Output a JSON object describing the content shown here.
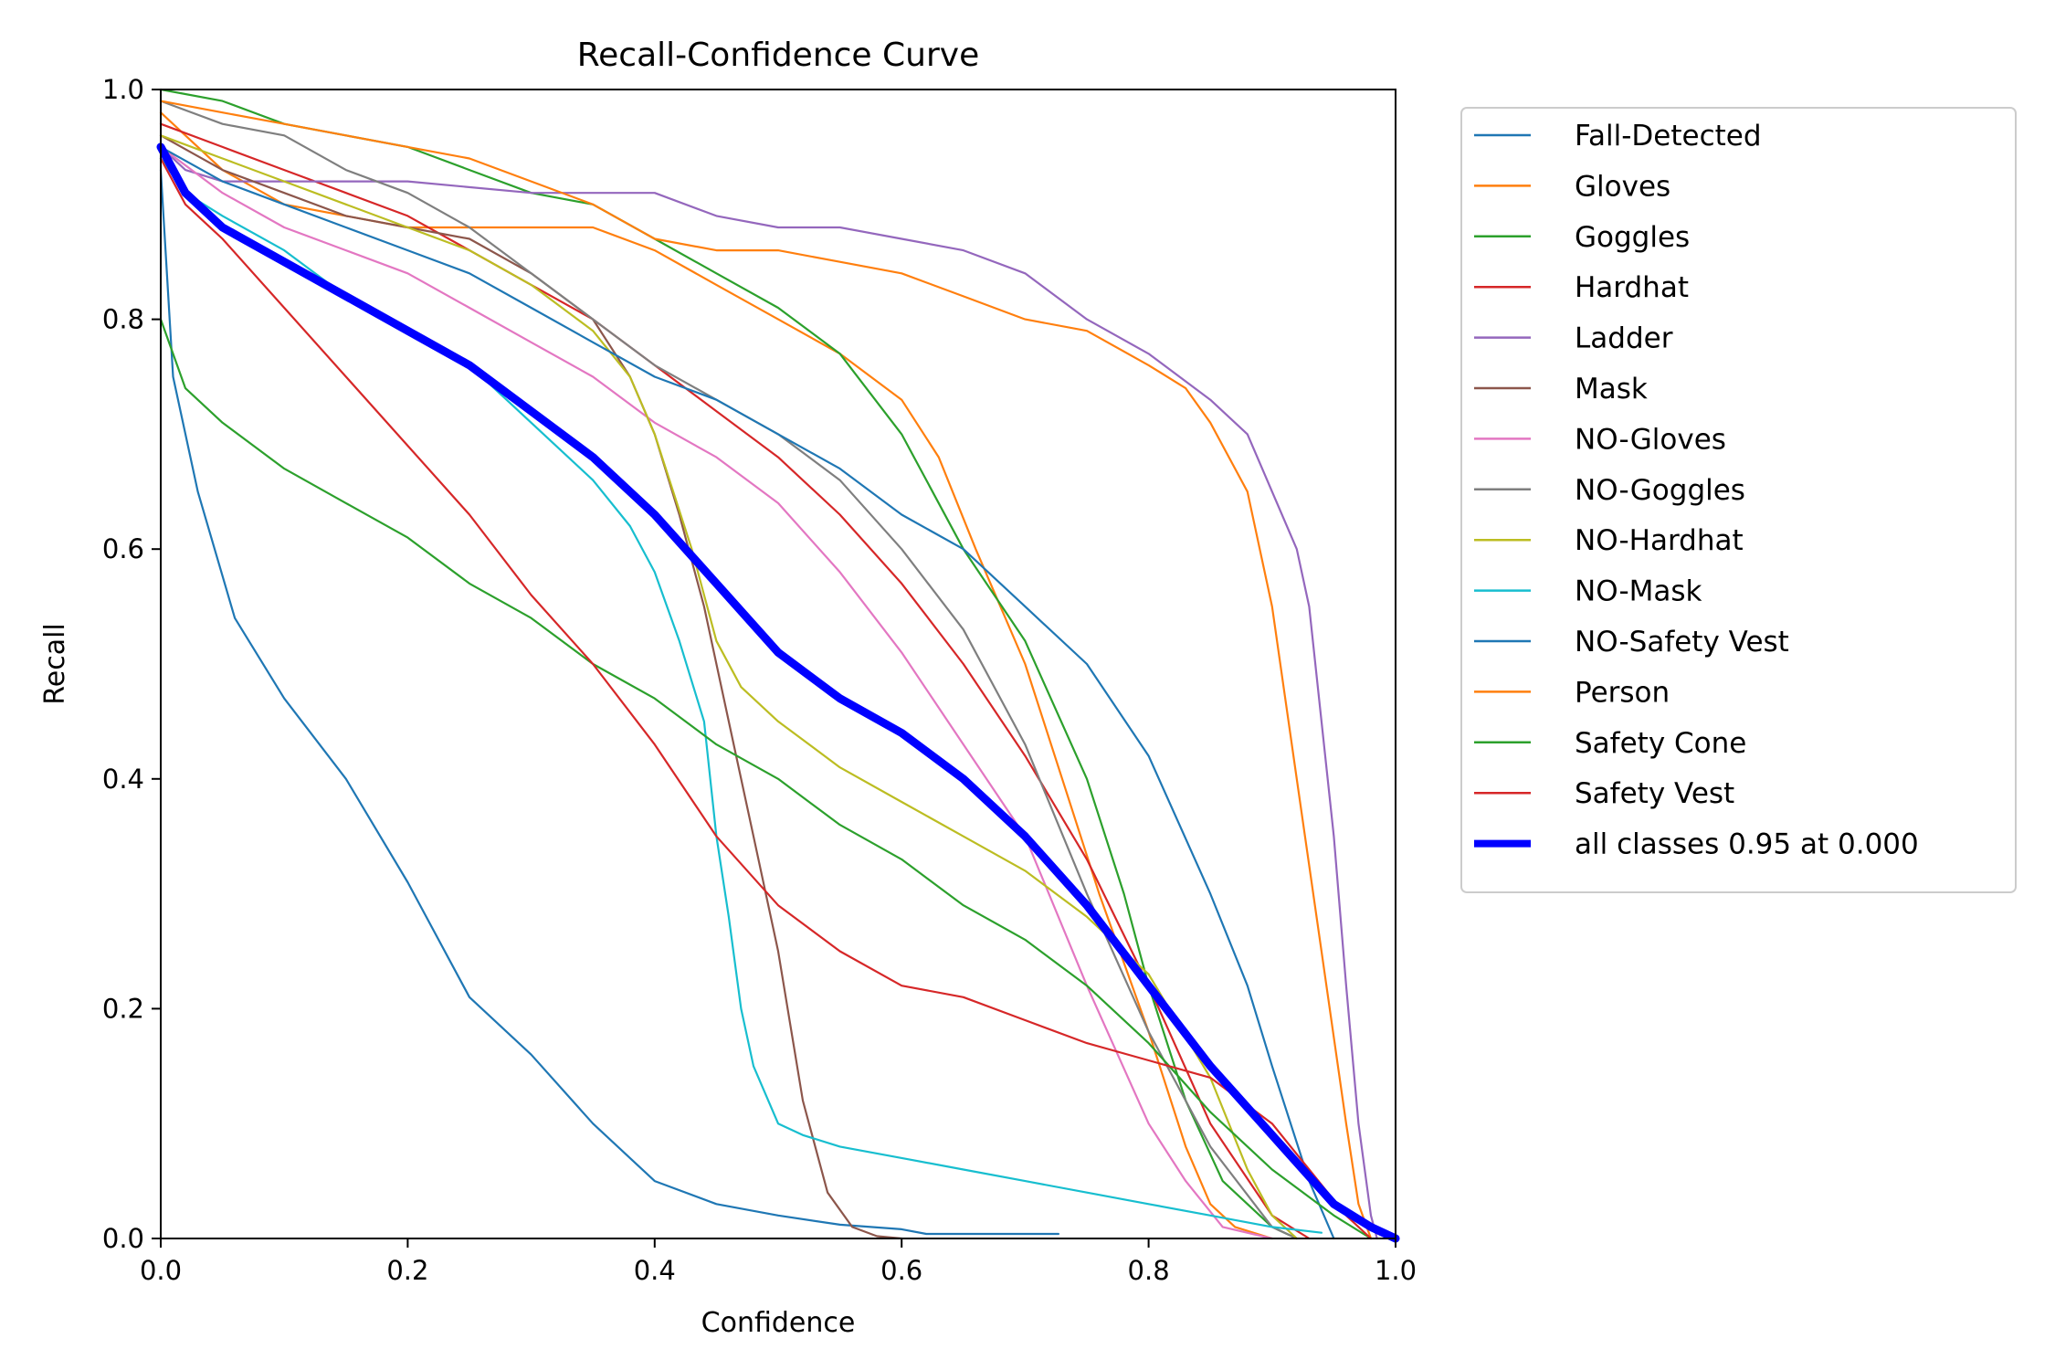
{
  "chart_data": {
    "type": "line",
    "title": "Recall-Confidence Curve",
    "xlabel": "Confidence",
    "ylabel": "Recall",
    "xlim": [
      0.0,
      1.0
    ],
    "ylim": [
      0.0,
      1.0
    ],
    "xticks": [
      "0.0",
      "0.2",
      "0.4",
      "0.6",
      "0.8",
      "1.0"
    ],
    "yticks": [
      "0.0",
      "0.2",
      "0.4",
      "0.6",
      "0.8",
      "1.0"
    ],
    "grid": false,
    "legend_position": "outside-right",
    "series": [
      {
        "name": "Fall-Detected",
        "color": "#1f77b4",
        "x": [
          0.0,
          0.01,
          0.03,
          0.06,
          0.1,
          0.15,
          0.2,
          0.25,
          0.3,
          0.35,
          0.4,
          0.45,
          0.5,
          0.55,
          0.6,
          0.62,
          0.7,
          0.727
        ],
        "y": [
          0.93,
          0.75,
          0.65,
          0.54,
          0.47,
          0.4,
          0.31,
          0.21,
          0.16,
          0.1,
          0.05,
          0.03,
          0.02,
          0.012,
          0.008,
          0.004,
          0.004,
          0.004
        ]
      },
      {
        "name": "Gloves",
        "color": "#ff7f0e",
        "x": [
          0.0,
          0.02,
          0.05,
          0.1,
          0.2,
          0.3,
          0.35,
          0.4,
          0.45,
          0.5,
          0.55,
          0.6,
          0.63,
          0.66,
          0.7,
          0.73,
          0.76,
          0.8,
          0.83,
          0.85,
          0.87,
          0.9
        ],
        "y": [
          0.98,
          0.96,
          0.93,
          0.9,
          0.88,
          0.88,
          0.88,
          0.86,
          0.83,
          0.8,
          0.77,
          0.73,
          0.68,
          0.6,
          0.5,
          0.4,
          0.3,
          0.18,
          0.08,
          0.03,
          0.01,
          0.0
        ]
      },
      {
        "name": "Goggles",
        "color": "#2ca02c",
        "x": [
          0.0,
          0.05,
          0.1,
          0.15,
          0.2,
          0.25,
          0.3,
          0.35,
          0.4,
          0.45,
          0.5,
          0.55,
          0.6,
          0.65,
          0.7,
          0.75,
          0.78,
          0.8,
          0.83,
          0.86,
          0.9,
          0.92
        ],
        "y": [
          1.0,
          0.99,
          0.97,
          0.96,
          0.95,
          0.93,
          0.91,
          0.9,
          0.87,
          0.84,
          0.81,
          0.77,
          0.7,
          0.6,
          0.52,
          0.4,
          0.3,
          0.22,
          0.12,
          0.05,
          0.01,
          0.0
        ]
      },
      {
        "name": "Hardhat",
        "color": "#d62728",
        "x": [
          0.0,
          0.05,
          0.1,
          0.15,
          0.2,
          0.25,
          0.3,
          0.35,
          0.4,
          0.45,
          0.5,
          0.55,
          0.6,
          0.65,
          0.7,
          0.75,
          0.8,
          0.85,
          0.9,
          0.93
        ],
        "y": [
          0.97,
          0.95,
          0.93,
          0.91,
          0.89,
          0.86,
          0.83,
          0.8,
          0.76,
          0.72,
          0.68,
          0.63,
          0.57,
          0.5,
          0.42,
          0.33,
          0.22,
          0.1,
          0.02,
          0.0
        ]
      },
      {
        "name": "Ladder",
        "color": "#9467bd",
        "x": [
          0.0,
          0.02,
          0.05,
          0.1,
          0.2,
          0.3,
          0.35,
          0.4,
          0.45,
          0.5,
          0.55,
          0.6,
          0.65,
          0.7,
          0.75,
          0.8,
          0.85,
          0.88,
          0.9,
          0.92,
          0.93,
          0.94,
          0.95,
          0.96,
          0.97,
          0.98,
          0.985
        ],
        "y": [
          0.95,
          0.93,
          0.92,
          0.92,
          0.92,
          0.91,
          0.91,
          0.91,
          0.89,
          0.88,
          0.88,
          0.87,
          0.86,
          0.84,
          0.8,
          0.77,
          0.73,
          0.7,
          0.65,
          0.6,
          0.55,
          0.45,
          0.35,
          0.22,
          0.1,
          0.02,
          0.0
        ]
      },
      {
        "name": "Mask",
        "color": "#8c564b",
        "x": [
          0.0,
          0.05,
          0.1,
          0.15,
          0.2,
          0.25,
          0.3,
          0.35,
          0.38,
          0.4,
          0.42,
          0.44,
          0.46,
          0.48,
          0.5,
          0.52,
          0.54,
          0.56,
          0.58,
          0.6
        ],
        "y": [
          0.96,
          0.93,
          0.91,
          0.89,
          0.88,
          0.87,
          0.84,
          0.8,
          0.75,
          0.7,
          0.63,
          0.55,
          0.45,
          0.35,
          0.25,
          0.12,
          0.04,
          0.01,
          0.002,
          0.0
        ]
      },
      {
        "name": "NO-Gloves",
        "color": "#e377c2",
        "x": [
          0.0,
          0.05,
          0.1,
          0.15,
          0.2,
          0.25,
          0.3,
          0.35,
          0.4,
          0.45,
          0.5,
          0.55,
          0.6,
          0.65,
          0.7,
          0.75,
          0.8,
          0.83,
          0.86,
          0.9
        ],
        "y": [
          0.95,
          0.91,
          0.88,
          0.86,
          0.84,
          0.81,
          0.78,
          0.75,
          0.71,
          0.68,
          0.64,
          0.58,
          0.51,
          0.43,
          0.35,
          0.22,
          0.1,
          0.05,
          0.01,
          0.0
        ]
      },
      {
        "name": "NO-Goggles",
        "color": "#7f7f7f",
        "x": [
          0.0,
          0.05,
          0.1,
          0.15,
          0.2,
          0.25,
          0.3,
          0.35,
          0.4,
          0.45,
          0.5,
          0.55,
          0.6,
          0.65,
          0.7,
          0.75,
          0.8,
          0.85,
          0.9,
          0.92
        ],
        "y": [
          0.99,
          0.97,
          0.96,
          0.93,
          0.91,
          0.88,
          0.84,
          0.8,
          0.76,
          0.73,
          0.7,
          0.66,
          0.6,
          0.53,
          0.43,
          0.3,
          0.18,
          0.08,
          0.01,
          0.0
        ]
      },
      {
        "name": "NO-Hardhat",
        "color": "#bcbd22",
        "x": [
          0.0,
          0.05,
          0.1,
          0.15,
          0.2,
          0.25,
          0.3,
          0.35,
          0.38,
          0.4,
          0.43,
          0.45,
          0.47,
          0.5,
          0.55,
          0.6,
          0.65,
          0.7,
          0.75,
          0.8,
          0.85,
          0.88,
          0.9,
          0.92
        ],
        "y": [
          0.96,
          0.94,
          0.92,
          0.9,
          0.88,
          0.86,
          0.83,
          0.79,
          0.75,
          0.7,
          0.6,
          0.52,
          0.48,
          0.45,
          0.41,
          0.38,
          0.35,
          0.32,
          0.28,
          0.23,
          0.14,
          0.06,
          0.02,
          0.0
        ]
      },
      {
        "name": "NO-Mask",
        "color": "#17becf",
        "x": [
          0.0,
          0.02,
          0.05,
          0.1,
          0.15,
          0.2,
          0.25,
          0.3,
          0.35,
          0.38,
          0.4,
          0.42,
          0.44,
          0.45,
          0.46,
          0.47,
          0.48,
          0.5,
          0.52,
          0.55,
          0.6,
          0.65,
          0.7,
          0.75,
          0.8,
          0.85,
          0.9,
          0.94
        ],
        "y": [
          0.94,
          0.91,
          0.89,
          0.86,
          0.82,
          0.79,
          0.76,
          0.71,
          0.66,
          0.62,
          0.58,
          0.52,
          0.45,
          0.35,
          0.28,
          0.2,
          0.15,
          0.1,
          0.09,
          0.08,
          0.07,
          0.06,
          0.05,
          0.04,
          0.03,
          0.02,
          0.01,
          0.005
        ]
      },
      {
        "name": "NO-Safety Vest",
        "color": "#1f77b4",
        "x": [
          0.0,
          0.05,
          0.1,
          0.15,
          0.2,
          0.25,
          0.3,
          0.35,
          0.4,
          0.45,
          0.5,
          0.55,
          0.6,
          0.65,
          0.7,
          0.75,
          0.8,
          0.85,
          0.88,
          0.9,
          0.93,
          0.95
        ],
        "y": [
          0.95,
          0.92,
          0.9,
          0.88,
          0.86,
          0.84,
          0.81,
          0.78,
          0.75,
          0.73,
          0.7,
          0.67,
          0.63,
          0.6,
          0.55,
          0.5,
          0.42,
          0.3,
          0.22,
          0.15,
          0.05,
          0.0
        ]
      },
      {
        "name": "Person",
        "color": "#ff7f0e",
        "x": [
          0.0,
          0.05,
          0.1,
          0.15,
          0.2,
          0.25,
          0.3,
          0.35,
          0.4,
          0.45,
          0.5,
          0.55,
          0.6,
          0.65,
          0.7,
          0.75,
          0.8,
          0.83,
          0.85,
          0.88,
          0.9,
          0.92,
          0.94,
          0.96,
          0.97,
          0.98
        ],
        "y": [
          0.99,
          0.98,
          0.97,
          0.96,
          0.95,
          0.94,
          0.92,
          0.9,
          0.87,
          0.86,
          0.86,
          0.85,
          0.84,
          0.82,
          0.8,
          0.79,
          0.76,
          0.74,
          0.71,
          0.65,
          0.55,
          0.4,
          0.25,
          0.1,
          0.03,
          0.0
        ]
      },
      {
        "name": "Safety Cone",
        "color": "#2ca02c",
        "x": [
          0.0,
          0.02,
          0.05,
          0.1,
          0.15,
          0.2,
          0.25,
          0.3,
          0.35,
          0.4,
          0.45,
          0.5,
          0.55,
          0.6,
          0.65,
          0.7,
          0.75,
          0.8,
          0.85,
          0.9,
          0.95,
          0.98
        ],
        "y": [
          0.8,
          0.74,
          0.71,
          0.67,
          0.64,
          0.61,
          0.57,
          0.54,
          0.5,
          0.47,
          0.43,
          0.4,
          0.36,
          0.33,
          0.29,
          0.26,
          0.22,
          0.17,
          0.11,
          0.06,
          0.02,
          0.0
        ]
      },
      {
        "name": "Safety Vest",
        "color": "#d62728",
        "x": [
          0.0,
          0.02,
          0.05,
          0.1,
          0.15,
          0.2,
          0.25,
          0.3,
          0.35,
          0.4,
          0.45,
          0.5,
          0.55,
          0.6,
          0.65,
          0.7,
          0.75,
          0.8,
          0.85,
          0.9,
          0.93,
          0.96,
          0.98
        ],
        "y": [
          0.94,
          0.9,
          0.87,
          0.81,
          0.75,
          0.69,
          0.63,
          0.56,
          0.5,
          0.43,
          0.35,
          0.29,
          0.25,
          0.22,
          0.21,
          0.19,
          0.17,
          0.155,
          0.14,
          0.1,
          0.06,
          0.02,
          0.0
        ]
      },
      {
        "name": "all classes 0.95 at 0.000",
        "color": "#0000ff",
        "bold": true,
        "x": [
          0.0,
          0.02,
          0.05,
          0.1,
          0.15,
          0.2,
          0.25,
          0.3,
          0.35,
          0.4,
          0.45,
          0.5,
          0.55,
          0.6,
          0.65,
          0.7,
          0.75,
          0.8,
          0.85,
          0.9,
          0.95,
          0.98,
          1.0
        ],
        "y": [
          0.95,
          0.91,
          0.88,
          0.85,
          0.82,
          0.79,
          0.76,
          0.72,
          0.68,
          0.63,
          0.57,
          0.51,
          0.47,
          0.44,
          0.4,
          0.35,
          0.29,
          0.22,
          0.15,
          0.09,
          0.03,
          0.01,
          0.0
        ]
      }
    ]
  }
}
